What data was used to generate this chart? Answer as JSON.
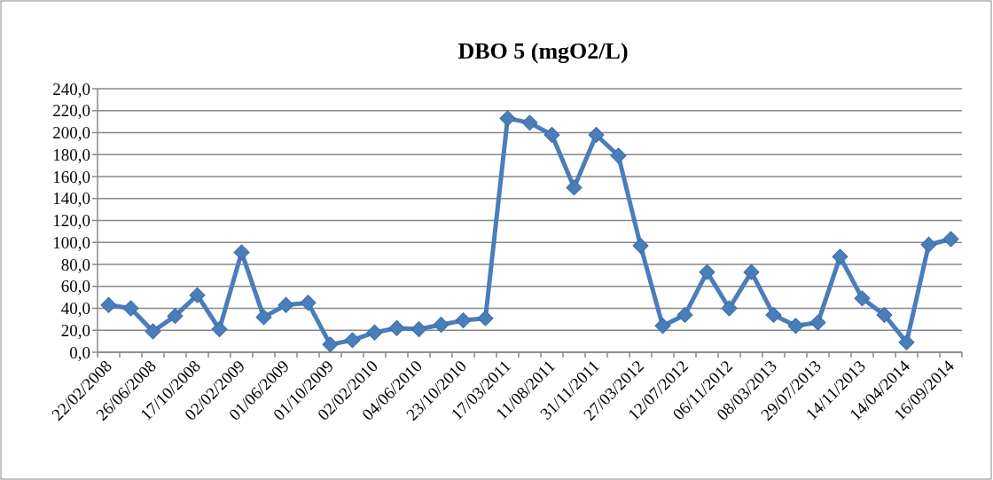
{
  "chart_data": {
    "type": "line",
    "title": "DBO 5 (mgO2/L)",
    "categories": [
      "22/02/2008",
      null,
      "26/06/2008",
      null,
      "17/10/2008",
      null,
      "02/02/2009",
      null,
      "01/06/2009",
      null,
      "01/10/2009",
      null,
      "02/02/2010",
      null,
      "04/06/2010",
      null,
      "23/10/2010",
      null,
      "17/03/2011",
      null,
      "11/08/2011",
      null,
      "31/11/2011",
      null,
      "27/03/2012",
      null,
      "12/07/2012",
      null,
      "06/11/2012",
      null,
      "08/03/2013",
      null,
      "29/07/2013",
      null,
      "14/11/2013",
      null,
      "14/04/2014",
      null,
      "16/09/2014"
    ],
    "series": [
      {
        "color": "#4a7ebb",
        "values": [
          43,
          40,
          19,
          33,
          52,
          21,
          91,
          32,
          43,
          45,
          7,
          11,
          18,
          22,
          21,
          25,
          29,
          31,
          213,
          209,
          198,
          150,
          198,
          179,
          97,
          24,
          34,
          73,
          40,
          73,
          34,
          24,
          27,
          87,
          49,
          34,
          9,
          98,
          103
        ]
      }
    ],
    "ylim": [
      0,
      240
    ],
    "yticks": [
      {
        "value": 0,
        "label": "0,0"
      },
      {
        "value": 20,
        "label": "20,0"
      },
      {
        "value": 40,
        "label": "40,0"
      },
      {
        "value": 60,
        "label": "60,0"
      },
      {
        "value": 80,
        "label": "80,0"
      },
      {
        "value": 100,
        "label": "100,0"
      },
      {
        "value": 120,
        "label": "120,0"
      },
      {
        "value": 140,
        "label": "140,0"
      },
      {
        "value": 160,
        "label": "160,0"
      },
      {
        "value": 180,
        "label": "180,0"
      },
      {
        "value": 200,
        "label": "200,0"
      },
      {
        "value": 220,
        "label": "220,0"
      },
      {
        "value": 240,
        "label": "240,0"
      }
    ],
    "grid": "y",
    "marker": "diamond",
    "line_style": "solid"
  }
}
